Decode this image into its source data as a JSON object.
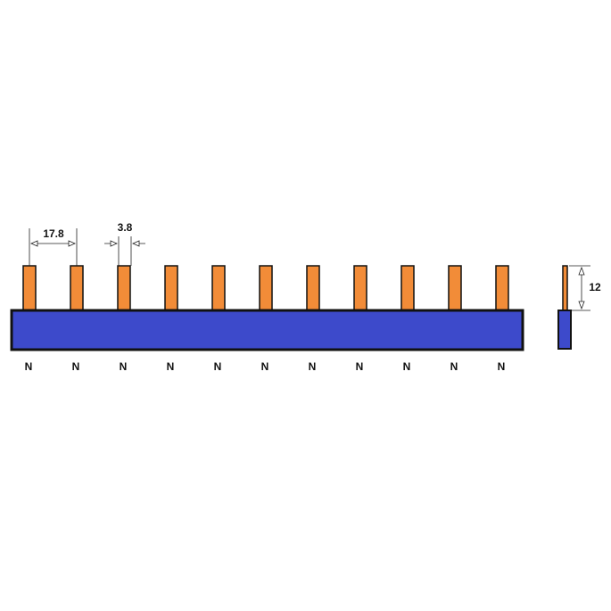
{
  "dimensions": {
    "pitch": "17.8",
    "pin_width": "3.8",
    "pin_height": "12"
  },
  "pins": {
    "labels": [
      "N",
      "N",
      "N",
      "N",
      "N",
      "N",
      "N",
      "N",
      "N",
      "N",
      "N"
    ]
  }
}
